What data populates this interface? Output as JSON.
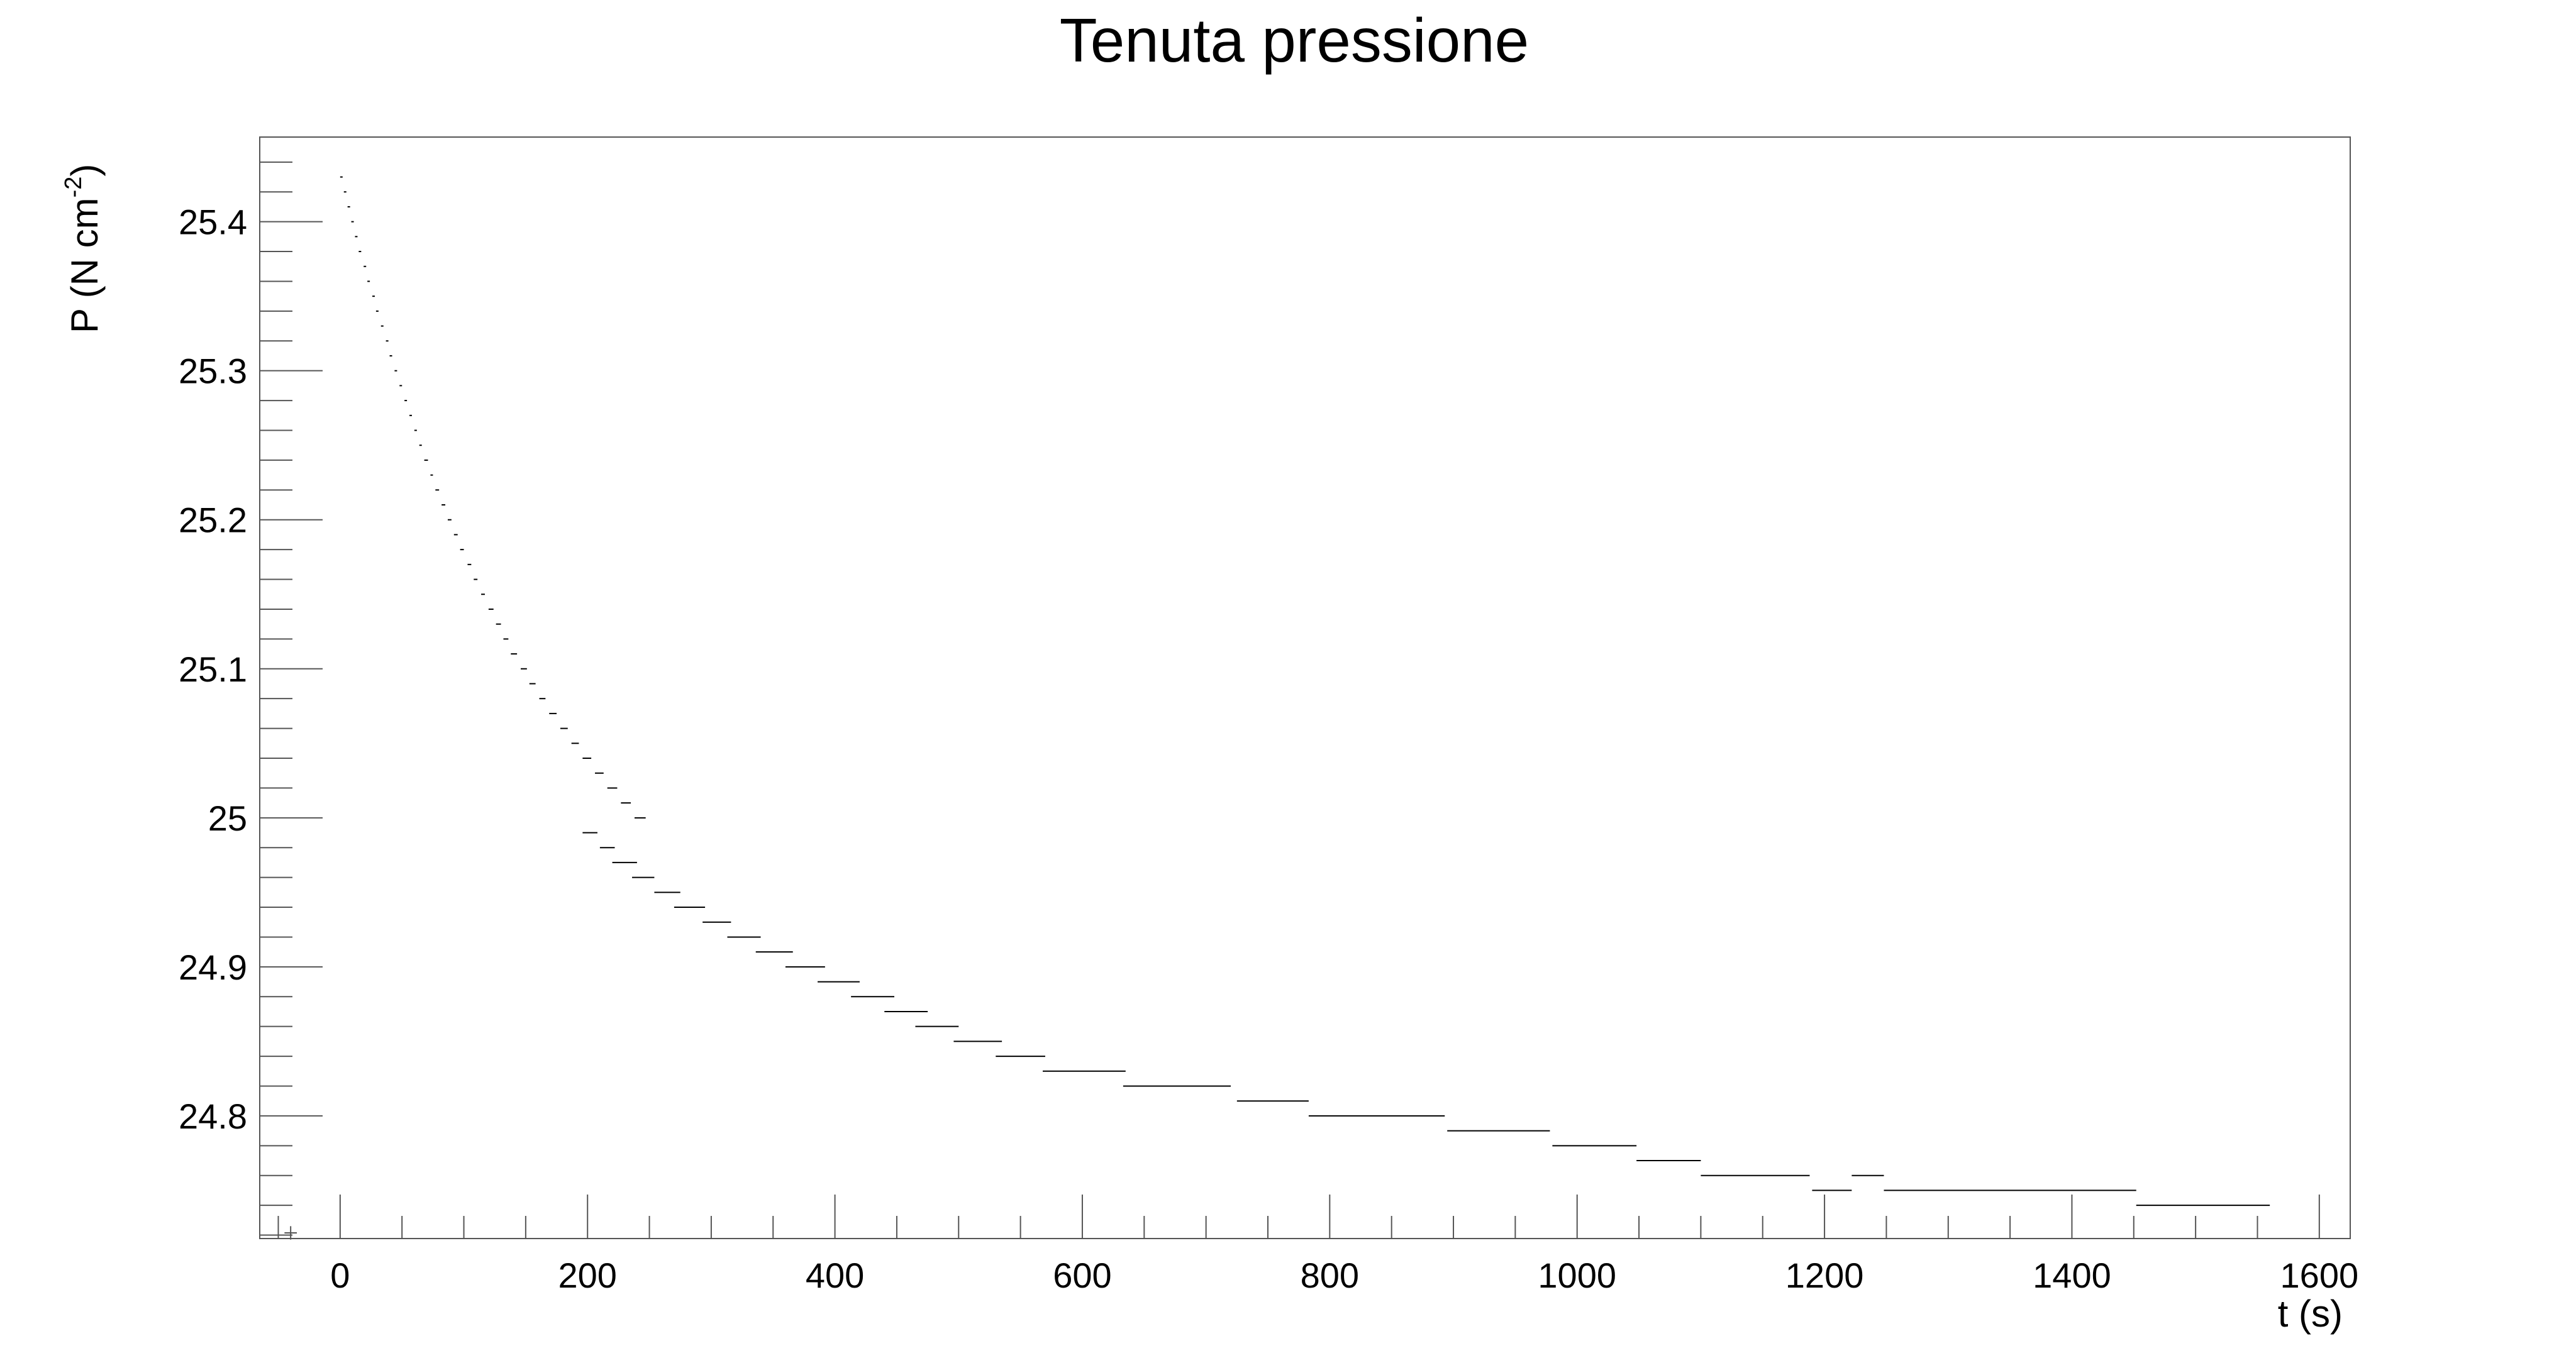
{
  "chart_data": {
    "type": "scatter",
    "title": "Tenuta pressione",
    "xlabel": "t (s)",
    "ylabel_main": "P (N cm",
    "ylabel_sup": "-2",
    "ylabel_close": ")",
    "xlim": [
      -65,
      1625
    ],
    "ylim": [
      24.7177,
      25.4568
    ],
    "x_ticks": [
      0,
      200,
      400,
      600,
      800,
      1000,
      1200,
      1400,
      1600
    ],
    "x_tick_labels": [
      "0",
      "200",
      "400",
      "600",
      "800",
      "1000",
      "1200",
      "1400",
      "1600"
    ],
    "y_ticks": [
      24.8,
      24.9,
      25.0,
      25.1,
      25.2,
      25.3,
      25.4
    ],
    "y_tick_labels": [
      "24.8",
      "24.9",
      "25",
      "25.1",
      "25.2",
      "25.3",
      "25.4"
    ],
    "grid": false,
    "legend": "none",
    "colors": {
      "frame": "#000000",
      "marks": "#000000",
      "background": "#ffffff"
    },
    "series": [
      {
        "note_segments": "each step is a run of samples at constant pressure: [t_start, t_end, P]",
        "steps": [
          [
            0,
            2,
            25.43
          ],
          [
            3,
            5,
            25.42
          ],
          [
            6,
            8,
            25.41
          ],
          [
            9,
            11,
            25.4
          ],
          [
            12,
            14,
            25.39
          ],
          [
            15,
            17,
            25.38
          ],
          [
            19,
            21,
            25.37
          ],
          [
            22,
            24,
            25.36
          ],
          [
            26,
            28,
            25.35
          ],
          [
            29,
            31,
            25.34
          ],
          [
            33,
            35,
            25.33
          ],
          [
            37,
            39,
            25.32
          ],
          [
            40,
            42,
            25.31
          ],
          [
            44,
            46,
            25.3
          ],
          [
            48,
            50,
            25.29
          ],
          [
            52,
            54,
            25.28
          ],
          [
            56,
            58,
            25.27
          ],
          [
            60,
            62,
            25.26
          ],
          [
            64,
            66,
            25.25
          ],
          [
            68,
            71,
            25.24
          ],
          [
            73,
            75,
            25.23
          ],
          [
            77,
            80,
            25.22
          ],
          [
            82,
            85,
            25.21
          ],
          [
            87,
            90,
            25.2
          ],
          [
            92,
            95,
            25.19
          ],
          [
            97,
            100,
            25.18
          ],
          [
            103,
            106,
            25.17
          ],
          [
            108,
            111,
            25.16
          ],
          [
            114,
            117,
            25.15
          ],
          [
            120,
            124,
            25.14
          ],
          [
            126,
            130,
            25.13
          ],
          [
            132,
            136,
            25.12
          ],
          [
            138,
            143,
            25.11
          ],
          [
            146,
            151,
            25.1
          ],
          [
            153,
            158,
            25.09
          ],
          [
            161,
            166,
            25.08
          ],
          [
            169,
            175,
            25.07
          ],
          [
            178,
            184,
            25.06
          ],
          [
            187,
            193,
            25.05
          ],
          [
            196,
            203,
            25.04
          ],
          [
            206,
            213,
            25.03
          ],
          [
            216,
            224,
            25.02
          ],
          [
            227,
            235,
            25.01
          ],
          [
            238,
            247,
            25.0
          ],
          [
            196,
            208,
            24.99
          ],
          [
            210,
            222,
            24.98
          ],
          [
            220,
            240,
            24.97
          ],
          [
            236,
            254,
            24.96
          ],
          [
            254,
            275,
            24.95
          ],
          [
            270,
            295,
            24.94
          ],
          [
            293,
            316,
            24.93
          ],
          [
            313,
            340,
            24.92
          ],
          [
            336,
            366,
            24.91
          ],
          [
            360,
            392,
            24.9
          ],
          [
            386,
            420,
            24.89
          ],
          [
            413,
            448,
            24.88
          ],
          [
            440,
            475,
            24.87
          ],
          [
            465,
            500,
            24.86
          ],
          [
            496,
            535,
            24.85
          ],
          [
            530,
            570,
            24.84
          ],
          [
            568,
            635,
            24.83
          ],
          [
            633,
            720,
            24.82
          ],
          [
            725,
            783,
            24.81
          ],
          [
            783,
            893,
            24.8
          ],
          [
            895,
            978,
            24.79
          ],
          [
            980,
            1048,
            24.78
          ],
          [
            1048,
            1100,
            24.77
          ],
          [
            1100,
            1188,
            24.76
          ],
          [
            1190,
            1222,
            24.75
          ],
          [
            1222,
            1248,
            24.76
          ],
          [
            1248,
            1452,
            24.75
          ],
          [
            1452,
            1560,
            24.74
          ]
        ]
      }
    ]
  }
}
